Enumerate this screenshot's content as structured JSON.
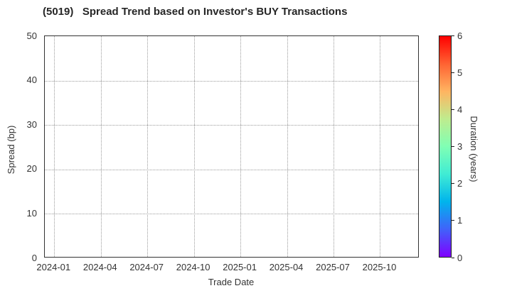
{
  "chart_data": {
    "type": "scatter",
    "title": "(5019)   Spread Trend based on Investor's BUY Transactions",
    "xlabel": "Trade Date",
    "ylabel": "Spread (bp)",
    "x_tick_labels": [
      "2024-01",
      "2024-04",
      "2024-07",
      "2024-10",
      "2025-01",
      "2025-04",
      "2025-07",
      "2025-10"
    ],
    "y_ticks": [
      0,
      10,
      20,
      30,
      40,
      50
    ],
    "ylim": [
      0,
      50
    ],
    "grid": true,
    "grid_style": "dotted",
    "points": [],
    "note": "no data points plotted - empty axes",
    "colorbar": {
      "label": "Duration (years)",
      "ticks": [
        0,
        1,
        2,
        3,
        4,
        5,
        6
      ],
      "min": 0,
      "max": 6,
      "colormap": "rainbow",
      "gradient_colors_bottom_to_top": [
        "#8000ff",
        "#4062fa",
        "#00b4ec",
        "#40ecd4",
        "#80ffb4",
        "#bfec8e",
        "#ffb461",
        "#ff6232",
        "#ff0000"
      ]
    },
    "colors": {
      "background": "#ffffff",
      "spine": "#333333",
      "grid": "#9b9b9b",
      "text": "#333333",
      "title_text": "#262626"
    }
  }
}
